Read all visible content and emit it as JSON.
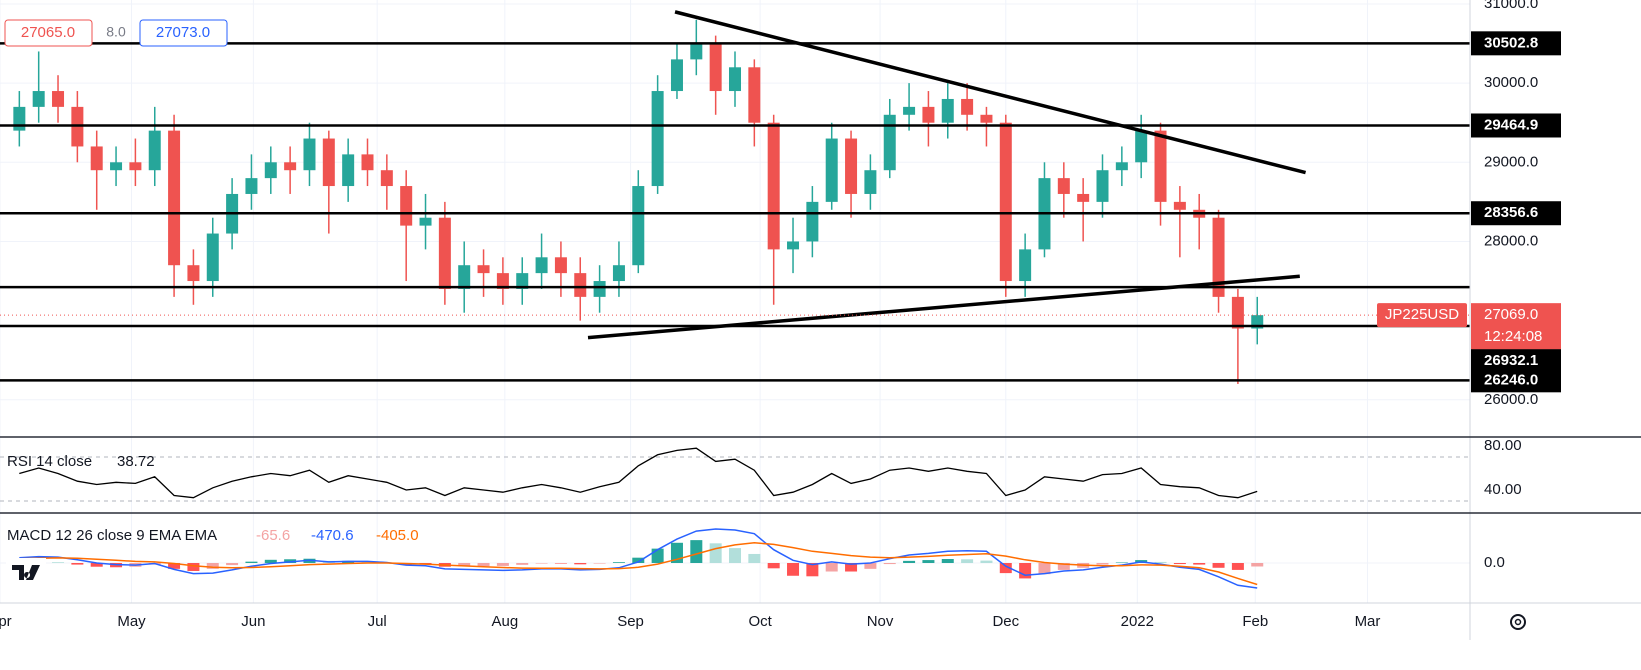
{
  "chart_data": {
    "type": "candlestick",
    "symbol": "JP225USD",
    "bid": "27065.0",
    "spread": "8.0",
    "ask": "27073.0",
    "countdown": "12:24:08",
    "last_label": "27069.0",
    "xlim": [
      -1,
      75
    ],
    "xticks": [
      {
        "value": -1,
        "label": "Apr"
      },
      {
        "value": 5.8,
        "label": "May"
      },
      {
        "value": 12.1,
        "label": "Jun"
      },
      {
        "value": 18.5,
        "label": "Jul"
      },
      {
        "value": 25.1,
        "label": "Aug"
      },
      {
        "value": 31.6,
        "label": "Sep"
      },
      {
        "value": 38.3,
        "label": "Oct"
      },
      {
        "value": 44.5,
        "label": "Nov"
      },
      {
        "value": 51,
        "label": "Dec"
      },
      {
        "value": 57.8,
        "label": "2022"
      },
      {
        "value": 63.9,
        "label": "Feb"
      },
      {
        "value": 69.7,
        "label": "Mar"
      }
    ],
    "ylim": [
      25530,
      31050
    ],
    "yticks": [
      {
        "value": 26000,
        "label": "26000.0"
      },
      {
        "value": 28000,
        "label": "28000.0"
      },
      {
        "value": 29000,
        "label": "29000.0"
      },
      {
        "value": 30000,
        "label": "30000.0"
      },
      {
        "value": 31000,
        "label": "31000.0"
      }
    ],
    "grid": true,
    "up_color": "#26a69a",
    "down_color": "#ef5350",
    "open": [
      29400,
      29700,
      29900,
      29700,
      29200,
      28900,
      29000,
      28900,
      29400,
      27700,
      27500,
      28100,
      28600,
      28800,
      29000,
      28900,
      29300,
      28700,
      29100,
      28900,
      28700,
      28200,
      28300,
      27400,
      27700,
      27600,
      27400,
      27600,
      27800,
      27600,
      27300,
      27500,
      27700,
      28700,
      29900,
      30300,
      30500,
      29900,
      30200,
      29500,
      27900,
      28000,
      28500,
      29300,
      28600,
      28900,
      29600,
      29700,
      29500,
      29800,
      29600,
      29500,
      27500,
      27900,
      28800,
      28600,
      28500,
      28900,
      29000,
      29400,
      28500,
      28400,
      28300,
      27300,
      26900
    ],
    "high": [
      29900,
      30400,
      30100,
      29900,
      29400,
      29200,
      29300,
      29700,
      29600,
      27900,
      28300,
      28800,
      29100,
      29200,
      29200,
      29500,
      29400,
      29300,
      29300,
      29100,
      28900,
      28600,
      28500,
      28000,
      27900,
      27800,
      27800,
      28100,
      28000,
      27800,
      27700,
      28000,
      28900,
      30100,
      30500,
      30800,
      30600,
      30400,
      30300,
      29600,
      28300,
      28700,
      29500,
      29400,
      29100,
      29800,
      30000,
      29900,
      30000,
      30000,
      29700,
      29600,
      28100,
      29000,
      29000,
      28800,
      29100,
      29200,
      29600,
      29500,
      28700,
      28600,
      28400,
      27400,
      27300
    ],
    "low": [
      29200,
      29500,
      29500,
      29000,
      28400,
      28700,
      28700,
      28700,
      27300,
      27200,
      27300,
      27900,
      28400,
      28600,
      28600,
      28700,
      28100,
      28500,
      28700,
      28400,
      27500,
      27900,
      27200,
      27100,
      27300,
      27200,
      27200,
      27400,
      27300,
      27000,
      27100,
      27300,
      27600,
      28600,
      29800,
      30100,
      29600,
      29700,
      29200,
      27200,
      27600,
      27800,
      28400,
      28300,
      28400,
      28800,
      29400,
      29200,
      29300,
      29400,
      29200,
      27300,
      27300,
      27800,
      28300,
      28000,
      28300,
      28700,
      28800,
      28200,
      27800,
      27900,
      27100,
      26200,
      26700
    ],
    "close": [
      29700,
      29900,
      29700,
      29200,
      28900,
      29000,
      28900,
      29400,
      27700,
      27500,
      28100,
      28600,
      28800,
      29000,
      28900,
      29300,
      28700,
      29100,
      28900,
      28700,
      28200,
      28300,
      27400,
      27700,
      27600,
      27400,
      27600,
      27800,
      27600,
      27300,
      27500,
      27700,
      28700,
      29900,
      30300,
      30500,
      29900,
      30200,
      29500,
      27900,
      28000,
      28500,
      29300,
      28600,
      28900,
      29600,
      29700,
      29500,
      29800,
      29600,
      29500,
      27500,
      27900,
      28800,
      28600,
      28500,
      28900,
      29000,
      29400,
      28500,
      28400,
      28300,
      27300,
      26900,
      27069
    ],
    "levels": [
      30502.8,
      29464.9,
      28356.6,
      27422.9,
      26932.1,
      {
        "value": 26246,
        "label": "26246.0"
      }
    ],
    "trendlines": [
      {
        "x": [
          33.9,
          66.5
        ],
        "y": [
          30900,
          28870
        ]
      },
      {
        "x": [
          29.4,
          66.2
        ],
        "y": [
          26785,
          27560
        ]
      }
    ],
    "rsi": {
      "title": "RSI 14 close",
      "color": "#000000",
      "ylim": [
        19.1,
        88.2
      ],
      "yticks": [
        {
          "value": 40,
          "label": "40.00"
        },
        {
          "value": 80,
          "label": "80.00"
        }
      ],
      "bands": [
        70,
        30
      ],
      "values": [
        55,
        60,
        55,
        48,
        45,
        47,
        46,
        52,
        35,
        33,
        42,
        48,
        52,
        55,
        53,
        58,
        47,
        53,
        50,
        47,
        40,
        42,
        35,
        42,
        40,
        38,
        42,
        45,
        42,
        38,
        43,
        47,
        62,
        72,
        76,
        78,
        66,
        68,
        58,
        35,
        38,
        45,
        55,
        46,
        50,
        58,
        60,
        57,
        60,
        57,
        55,
        35,
        40,
        52,
        50,
        48,
        54,
        55,
        60,
        45,
        43,
        42,
        35,
        33,
        38.72
      ]
    },
    "macd": {
      "title": "MACD 12 26 close 9 EMA EMA",
      "ylim": [
        -752,
        940
      ],
      "yticks": [
        {
          "value": 0,
          "label": "0.0"
        }
      ],
      "macd": {
        "color": "#2962ff",
        "values": [
          100,
          120,
          110,
          60,
          0,
          -30,
          -40,
          -10,
          -120,
          -200,
          -190,
          -130,
          -60,
          -10,
          20,
          50,
          20,
          30,
          30,
          10,
          -40,
          -50,
          -110,
          -120,
          -130,
          -140,
          -130,
          -110,
          -110,
          -130,
          -120,
          -90,
          20,
          250,
          450,
          600,
          640,
          620,
          550,
          250,
          50,
          -30,
          20,
          -20,
          0,
          80,
          150,
          180,
          220,
          230,
          220,
          -60,
          -230,
          -200,
          -150,
          -130,
          -80,
          -40,
          20,
          -20,
          -80,
          -120,
          -260,
          -420,
          -470.6
        ]
      },
      "signal": {
        "color": "#ff6d00",
        "last_label": "-405.0",
        "values": [
          80,
          90,
          95,
          90,
          70,
          50,
          30,
          20,
          -10,
          -50,
          -80,
          -90,
          -85,
          -70,
          -50,
          -30,
          -20,
          -10,
          0,
          0,
          -10,
          -20,
          -40,
          -55,
          -70,
          -85,
          -95,
          -100,
          -100,
          -105,
          -110,
          -105,
          -80,
          -20,
          70,
          170,
          270,
          340,
          380,
          350,
          290,
          220,
          180,
          140,
          110,
          100,
          110,
          125,
          145,
          160,
          175,
          130,
          60,
          10,
          -20,
          -40,
          -50,
          -50,
          -35,
          -40,
          -60,
          -90,
          -170,
          -290,
          -405
        ]
      },
      "histogram": {
        "colors": {
          "up_grow": "#26a69a",
          "up_fall": "#b2dfdb",
          "down_grow": "#ff5252",
          "down_fall": "#f4a3a3"
        },
        "values": [
          20,
          30,
          15,
          -30,
          -70,
          -80,
          -70,
          -30,
          -110,
          -150,
          -110,
          -40,
          25,
          60,
          70,
          80,
          40,
          40,
          30,
          10,
          -30,
          -30,
          -70,
          -65,
          -60,
          -55,
          -35,
          -10,
          -10,
          -25,
          -10,
          15,
          100,
          270,
          380,
          430,
          370,
          280,
          170,
          -100,
          -240,
          -250,
          -160,
          -160,
          -110,
          -20,
          40,
          55,
          75,
          70,
          45,
          -190,
          -290,
          -210,
          -130,
          -90,
          -30,
          10,
          55,
          20,
          -20,
          -30,
          -90,
          -130,
          -65.6
        ]
      }
    }
  }
}
